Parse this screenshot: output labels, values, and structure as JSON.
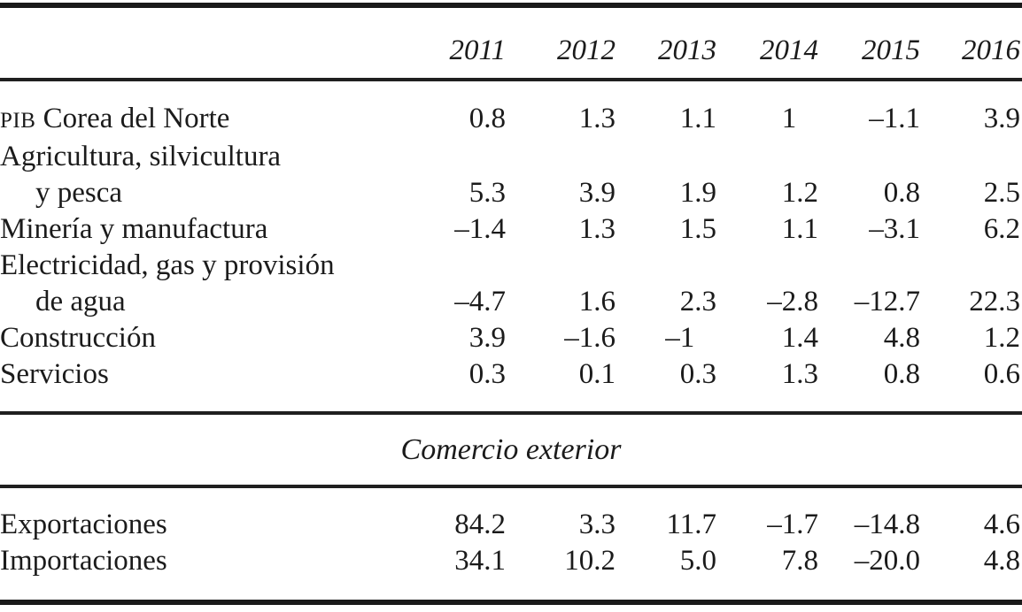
{
  "table": {
    "columns": [
      "2011",
      "2012",
      "2013",
      "2014",
      "2015",
      "2016"
    ],
    "rows": [
      {
        "prefix": "PIB",
        "label": " Corea del Norte",
        "values": [
          "0.8",
          "1.3",
          "1.1",
          "1  ",
          "–1.1",
          "3.9"
        ]
      },
      {
        "prefix": "",
        "label": "Agricultura, silvicultura",
        "values": [
          "",
          "",
          "",
          "",
          "",
          ""
        ]
      },
      {
        "prefix": "",
        "label": "y pesca",
        "values": [
          "5.3",
          "3.9",
          "1.9",
          "1.2",
          "0.8",
          "2.5"
        ]
      },
      {
        "prefix": "",
        "label": "Minería y manufactura",
        "values": [
          "–1.4",
          "1.3",
          "1.5",
          "1.1",
          "–3.1",
          "6.2"
        ]
      },
      {
        "prefix": "",
        "label": "Electricidad, gas y provisión",
        "values": [
          "",
          "",
          "",
          "",
          "",
          ""
        ]
      },
      {
        "prefix": "",
        "label": "de agua",
        "values": [
          "–4.7",
          "1.6",
          "2.3",
          "–2.8",
          "–12.7",
          "22.3"
        ]
      },
      {
        "prefix": "",
        "label": "Construcción",
        "values": [
          "3.9",
          "–1.6",
          "–1  ",
          "1.4",
          "4.8",
          "1.2"
        ]
      },
      {
        "prefix": "",
        "label": "Servicios",
        "values": [
          "0.3",
          "0.1",
          "0.3",
          "1.3",
          "0.8",
          "0.6"
        ]
      }
    ],
    "section_title": "Comercio exterior",
    "trade_rows": [
      {
        "label": "Exportaciones",
        "values": [
          "84.2",
          "3.3",
          "11.7",
          "–1.7",
          "–14.8",
          "4.6"
        ]
      },
      {
        "label": "Importaciones",
        "values": [
          "34.1",
          "10.2",
          "5.0",
          "7.8",
          "–20.0",
          "4.8"
        ]
      }
    ]
  },
  "chart_data": {
    "type": "table",
    "columns": [
      "2011",
      "2012",
      "2013",
      "2014",
      "2015",
      "2016"
    ],
    "rows": [
      {
        "label": "PIB Corea del Norte",
        "values": [
          0.8,
          1.3,
          1.1,
          1,
          -1.1,
          3.9
        ]
      },
      {
        "label": "Agricultura, silvicultura y pesca",
        "values": [
          5.3,
          3.9,
          1.9,
          1.2,
          0.8,
          2.5
        ]
      },
      {
        "label": "Minería y manufactura",
        "values": [
          -1.4,
          1.3,
          1.5,
          1.1,
          -3.1,
          6.2
        ]
      },
      {
        "label": "Electricidad, gas y provisión de agua",
        "values": [
          -4.7,
          1.6,
          2.3,
          -2.8,
          -12.7,
          22.3
        ]
      },
      {
        "label": "Construcción",
        "values": [
          3.9,
          -1.6,
          -1,
          1.4,
          4.8,
          1.2
        ]
      },
      {
        "label": "Servicios",
        "values": [
          0.3,
          0.1,
          0.3,
          1.3,
          0.8,
          0.6
        ]
      }
    ],
    "section": {
      "title": "Comercio exterior",
      "rows": [
        {
          "label": "Exportaciones",
          "values": [
            84.2,
            3.3,
            11.7,
            -1.7,
            -14.8,
            4.6
          ]
        },
        {
          "label": "Importaciones",
          "values": [
            34.1,
            10.2,
            5.0,
            7.8,
            -20.0,
            4.8
          ]
        }
      ]
    }
  }
}
